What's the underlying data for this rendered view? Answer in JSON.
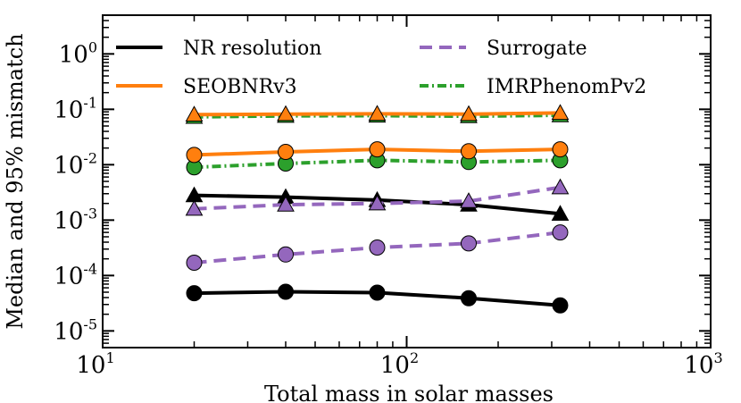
{
  "chart_data": {
    "type": "line",
    "xlabel": "Total mass in solar masses",
    "ylabel": "Median and 95% mismatch",
    "xscale": "log",
    "yscale": "log",
    "xlim": [
      10,
      1000
    ],
    "ylim": [
      5e-06,
      5
    ],
    "x_ticks": [
      {
        "value": 10,
        "base": "10",
        "exp": "1"
      },
      {
        "value": 100,
        "base": "10",
        "exp": "2"
      },
      {
        "value": 1000,
        "base": "10",
        "exp": "3"
      }
    ],
    "y_ticks": [
      {
        "value": 1,
        "base": "10",
        "exp": "0"
      },
      {
        "value": 0.1,
        "base": "10",
        "exp": "-1"
      },
      {
        "value": 0.01,
        "base": "10",
        "exp": "-2"
      },
      {
        "value": 0.001,
        "base": "10",
        "exp": "-3"
      },
      {
        "value": 0.0001,
        "base": "10",
        "exp": "-4"
      },
      {
        "value": 1e-05,
        "base": "10",
        "exp": "-5"
      }
    ],
    "grid": false,
    "legend_position": "top",
    "x": [
      20,
      40,
      80,
      160,
      320
    ],
    "series": [
      {
        "name": "NR resolution",
        "style": "solid",
        "color": "#000000",
        "median": [
          4.8e-05,
          5.1e-05,
          4.9e-05,
          3.9e-05,
          2.9e-05
        ],
        "p95": [
          0.0028,
          0.0026,
          0.0023,
          0.0019,
          0.0013
        ]
      },
      {
        "name": "SEOBNRv3",
        "style": "solid",
        "color": "#ff7f0e",
        "median": [
          0.015,
          0.017,
          0.019,
          0.0175,
          0.019
        ],
        "p95": [
          0.08,
          0.082,
          0.083,
          0.082,
          0.086
        ]
      },
      {
        "name": "Surrogate",
        "style": "dashed",
        "color": "#9467bd",
        "median": [
          0.00017,
          0.00024,
          0.00032,
          0.00038,
          0.0006
        ],
        "p95": [
          0.0016,
          0.0019,
          0.002,
          0.0022,
          0.0039
        ]
      },
      {
        "name": "IMRPhenomPv2",
        "style": "dashdot",
        "color": "#2ca02c",
        "median": [
          0.009,
          0.0105,
          0.012,
          0.0112,
          0.012
        ],
        "p95": [
          0.073,
          0.076,
          0.077,
          0.075,
          0.078
        ]
      }
    ]
  }
}
